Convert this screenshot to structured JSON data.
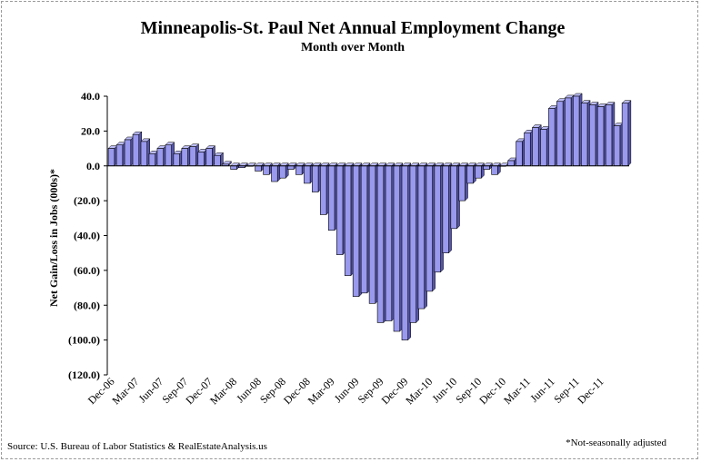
{
  "chart_data": {
    "type": "bar",
    "title": "Minneapolis-St. Paul Net Annual Employment Change",
    "subtitle": "Month over Month",
    "ylabel": "Net Gain/Loss in Jobs (000s)*",
    "xlabel": "",
    "ylim": [
      -120,
      40
    ],
    "yticks": [
      {
        "value": 40,
        "label": "40.0"
      },
      {
        "value": 20,
        "label": "20.0"
      },
      {
        "value": 0,
        "label": "0.0"
      },
      {
        "value": -20,
        "label": "(20.0)"
      },
      {
        "value": -40,
        "label": "(40.0)"
      },
      {
        "value": -60,
        "label": "(60.0)"
      },
      {
        "value": -80,
        "label": "(80.0)"
      },
      {
        "value": -100,
        "label": "(100.0)"
      },
      {
        "value": -120,
        "label": "(120.0)"
      }
    ],
    "negative_tick_color": "#cc0000",
    "bar_color": "#9999ee",
    "bar_outline": "#000000",
    "grid": false,
    "legend": "none",
    "x_tick_labels": [
      {
        "index": 0,
        "label": "Dec-06"
      },
      {
        "index": 3,
        "label": "Mar-07"
      },
      {
        "index": 6,
        "label": "Jun-07"
      },
      {
        "index": 9,
        "label": "Sep-07"
      },
      {
        "index": 12,
        "label": "Dec-07"
      },
      {
        "index": 15,
        "label": "Mar-08"
      },
      {
        "index": 18,
        "label": "Jun-08"
      },
      {
        "index": 21,
        "label": "Sep-08"
      },
      {
        "index": 24,
        "label": "Dec-08"
      },
      {
        "index": 27,
        "label": "Mar-09"
      },
      {
        "index": 30,
        "label": "Jun-09"
      },
      {
        "index": 33,
        "label": "Sep-09"
      },
      {
        "index": 36,
        "label": "Dec-09"
      },
      {
        "index": 39,
        "label": "Mar-10"
      },
      {
        "index": 42,
        "label": "Jun-10"
      },
      {
        "index": 45,
        "label": "Sep-10"
      },
      {
        "index": 48,
        "label": "Dec-10"
      },
      {
        "index": 51,
        "label": "Mar-11"
      },
      {
        "index": 54,
        "label": "Jun-11"
      },
      {
        "index": 57,
        "label": "Sep-11"
      },
      {
        "index": 60,
        "label": "Dec-11"
      }
    ],
    "categories": [
      "Dec-06",
      "Jan-07",
      "Feb-07",
      "Mar-07",
      "Apr-07",
      "May-07",
      "Jun-07",
      "Jul-07",
      "Aug-07",
      "Sep-07",
      "Oct-07",
      "Nov-07",
      "Dec-07",
      "Jan-08",
      "Feb-08",
      "Mar-08",
      "Apr-08",
      "May-08",
      "Jun-08",
      "Jul-08",
      "Aug-08",
      "Sep-08",
      "Oct-08",
      "Nov-08",
      "Dec-08",
      "Jan-09",
      "Feb-09",
      "Mar-09",
      "Apr-09",
      "May-09",
      "Jun-09",
      "Jul-09",
      "Aug-09",
      "Sep-09",
      "Oct-09",
      "Nov-09",
      "Dec-09",
      "Jan-10",
      "Feb-10",
      "Mar-10",
      "Apr-10",
      "May-10",
      "Jun-10",
      "Jul-10",
      "Aug-10",
      "Sep-10",
      "Oct-10",
      "Nov-10",
      "Dec-10",
      "Jan-11",
      "Feb-11",
      "Mar-11",
      "Apr-11",
      "May-11",
      "Jun-11",
      "Jul-11",
      "Aug-11",
      "Sep-11",
      "Oct-11",
      "Nov-11",
      "Dec-11",
      "Jan-12",
      "Feb-12",
      "Mar-12"
    ],
    "values": [
      10,
      12,
      15,
      18,
      14,
      7,
      10,
      12,
      7,
      10,
      11,
      8,
      10,
      6,
      1,
      -2,
      -1,
      0,
      -3,
      -5,
      -9,
      -7,
      -2,
      -5,
      -10,
      -15,
      -28,
      -37,
      -51,
      -63,
      -75,
      -73,
      -79,
      -90,
      -89,
      -95,
      -100,
      -90,
      -82,
      -72,
      -61,
      -50,
      -36,
      -20,
      -10,
      -7,
      -2,
      -5,
      0,
      3,
      14,
      19,
      22,
      21,
      33,
      37,
      39,
      40,
      36,
      35,
      34,
      35,
      23,
      36
    ]
  },
  "source_note": "Source: U.S. Bureau of Labor Statistics & RealEstateAnalysis.us",
  "footnote": "*Not-seasonally adjusted"
}
